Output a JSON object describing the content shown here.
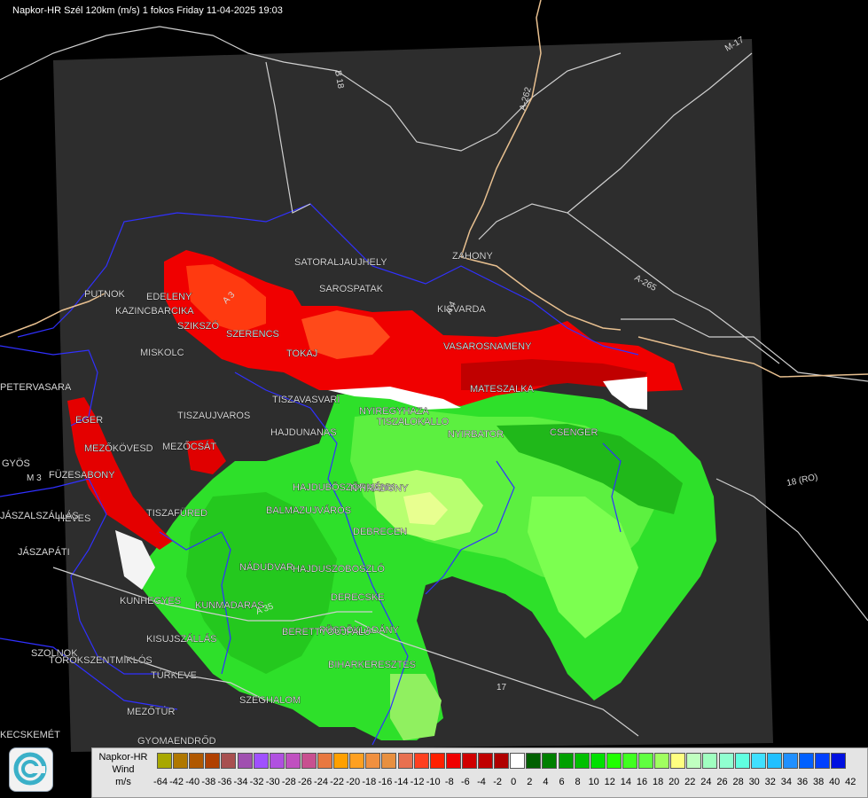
{
  "header": {
    "title": "Napkor-HR Szél 120km (m/s) 1 fokos Friday 11-04-2025 19:03"
  },
  "legend": {
    "line1": "Napkor-HR",
    "line2": "Wind",
    "line3": "m/s",
    "ticks": [
      "-64",
      "-42",
      "-40",
      "-38",
      "-36",
      "-34",
      "-32",
      "-30",
      "-28",
      "-26",
      "-24",
      "-22",
      "-20",
      "-18",
      "-16",
      "-14",
      "-12",
      "-10",
      "-8",
      "-6",
      "-4",
      "-2",
      "0",
      "2",
      "4",
      "6",
      "8",
      "10",
      "12",
      "14",
      "16",
      "18",
      "20",
      "22",
      "24",
      "26",
      "28",
      "30",
      "32",
      "34",
      "36",
      "38",
      "40",
      "42"
    ],
    "colors": [
      "#a8a800",
      "#b07800",
      "#b05800",
      "#b04000",
      "#a85050",
      "#a050b0",
      "#a050ff",
      "#b050e0",
      "#c050c0",
      "#c85090",
      "#e87840",
      "#ffa000",
      "#ffa020",
      "#f09040",
      "#e89040",
      "#e87050",
      "#ff4020",
      "#ff2000",
      "#f00000",
      "#d00000",
      "#c00000",
      "#b00000",
      "#ffffff",
      "#006000",
      "#008000",
      "#00a000",
      "#00c000",
      "#00e000",
      "#20ff00",
      "#40ff20",
      "#60ff40",
      "#a0ff60",
      "#ffff80",
      "#c0ffc0",
      "#a0ffc0",
      "#90ffd0",
      "#60ffe0",
      "#40e0ff",
      "#20c0ff",
      "#2090ff",
      "#0060ff",
      "#0040ff",
      "#0010e0"
    ]
  },
  "map": {
    "cities": [
      {
        "name": "PUTNOK"
      },
      {
        "name": "EDELENY"
      },
      {
        "name": "KAZINCBARCIKA"
      },
      {
        "name": "SZIKSZÓ"
      },
      {
        "name": "SZERENCS"
      },
      {
        "name": "SATORALJAUJHELY"
      },
      {
        "name": "SAROSPATAK"
      },
      {
        "name": "ZAHONY"
      },
      {
        "name": "KISVARDA"
      },
      {
        "name": "VASAROSNAMENY"
      },
      {
        "name": "TOKAJ"
      },
      {
        "name": "MISKOLC"
      },
      {
        "name": "PETERVASARA"
      },
      {
        "name": "EGER"
      },
      {
        "name": "TISZAUJVAROS"
      },
      {
        "name": "TISZAVASVARI"
      },
      {
        "name": "NYIREGYHAZA"
      },
      {
        "name": "TISZALOKALLO"
      },
      {
        "name": "MATESZALKA"
      },
      {
        "name": "NYIRBATOR"
      },
      {
        "name": "CSENGER"
      },
      {
        "name": "HAJDUNANAS"
      },
      {
        "name": "MEZŐKÖVESD"
      },
      {
        "name": "MEZŐCSÁT"
      },
      {
        "name": "GYÖS"
      },
      {
        "name": "FÜZESABONY"
      },
      {
        "name": "HEVES"
      },
      {
        "name": "JÁSZAPÁTI"
      },
      {
        "name": "JÁSZALSZÁLLÁS"
      },
      {
        "name": "TISZAFÜRED"
      },
      {
        "name": "HAJDUBÖSZÖRMÉNY"
      },
      {
        "name": "BALMAZUJVÁROS"
      },
      {
        "name": "DEBRECEN"
      },
      {
        "name": "NYIRADONY"
      },
      {
        "name": "NÁDUDVAR"
      },
      {
        "name": "HAJDUSZOBOSZLÓ"
      },
      {
        "name": "DERECSKE"
      },
      {
        "name": "PÜSPÖKLADÁNY"
      },
      {
        "name": "KUNHEGYES"
      },
      {
        "name": "KUNMADARAS"
      },
      {
        "name": "KISUJSZÁLLÁS"
      },
      {
        "name": "BERETTYÓUJFALU"
      },
      {
        "name": "SZOLNOK"
      },
      {
        "name": "TÖRÖKSZENTMIKLÓS"
      },
      {
        "name": "TÚRKEVE"
      },
      {
        "name": "BIHARKERESZTES"
      },
      {
        "name": "SZEGHALOM"
      },
      {
        "name": "MEZŐTÚR"
      },
      {
        "name": "GYOMAENDRŐD"
      },
      {
        "name": "KECSKEMÉT"
      }
    ],
    "roads": [
      "B 18",
      "A-262",
      "M-17",
      "A-265",
      "18 (RO)",
      "A 3",
      "A 4",
      "A 35",
      "M 3",
      "17"
    ]
  }
}
